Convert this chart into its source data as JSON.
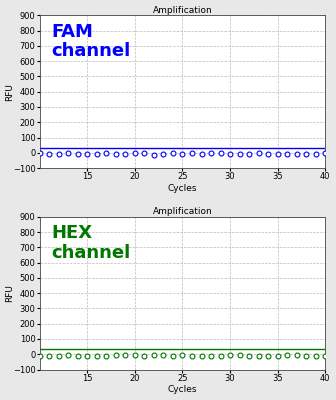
{
  "title": "Amplification",
  "xlabel": "Cycles",
  "ylabel": "RFU",
  "xlim": [
    10,
    40
  ],
  "ylim": [
    -100,
    900
  ],
  "yticks": [
    -100,
    0,
    100,
    200,
    300,
    400,
    500,
    600,
    700,
    800,
    900
  ],
  "xticks": [
    15,
    20,
    25,
    30,
    35,
    40
  ],
  "x_start": 10,
  "x_end": 40,
  "num_points": 31,
  "fam_label": "FAM\nchannel",
  "fam_color": "#0000FF",
  "fam_line_y": 30,
  "fam_dot_y": -5,
  "hex_label": "HEX\nchannel",
  "hex_color": "#007700",
  "hex_line_y": 35,
  "hex_dot_y": -8,
  "bg_color": "#E8E8E8",
  "panel_bg": "#FFFFFF",
  "grid_color": "#BBBBBB",
  "grid_style": "--",
  "title_fontsize": 6.5,
  "axis_label_fontsize": 6.5,
  "tick_fontsize": 6,
  "channel_label_fontsize": 13
}
